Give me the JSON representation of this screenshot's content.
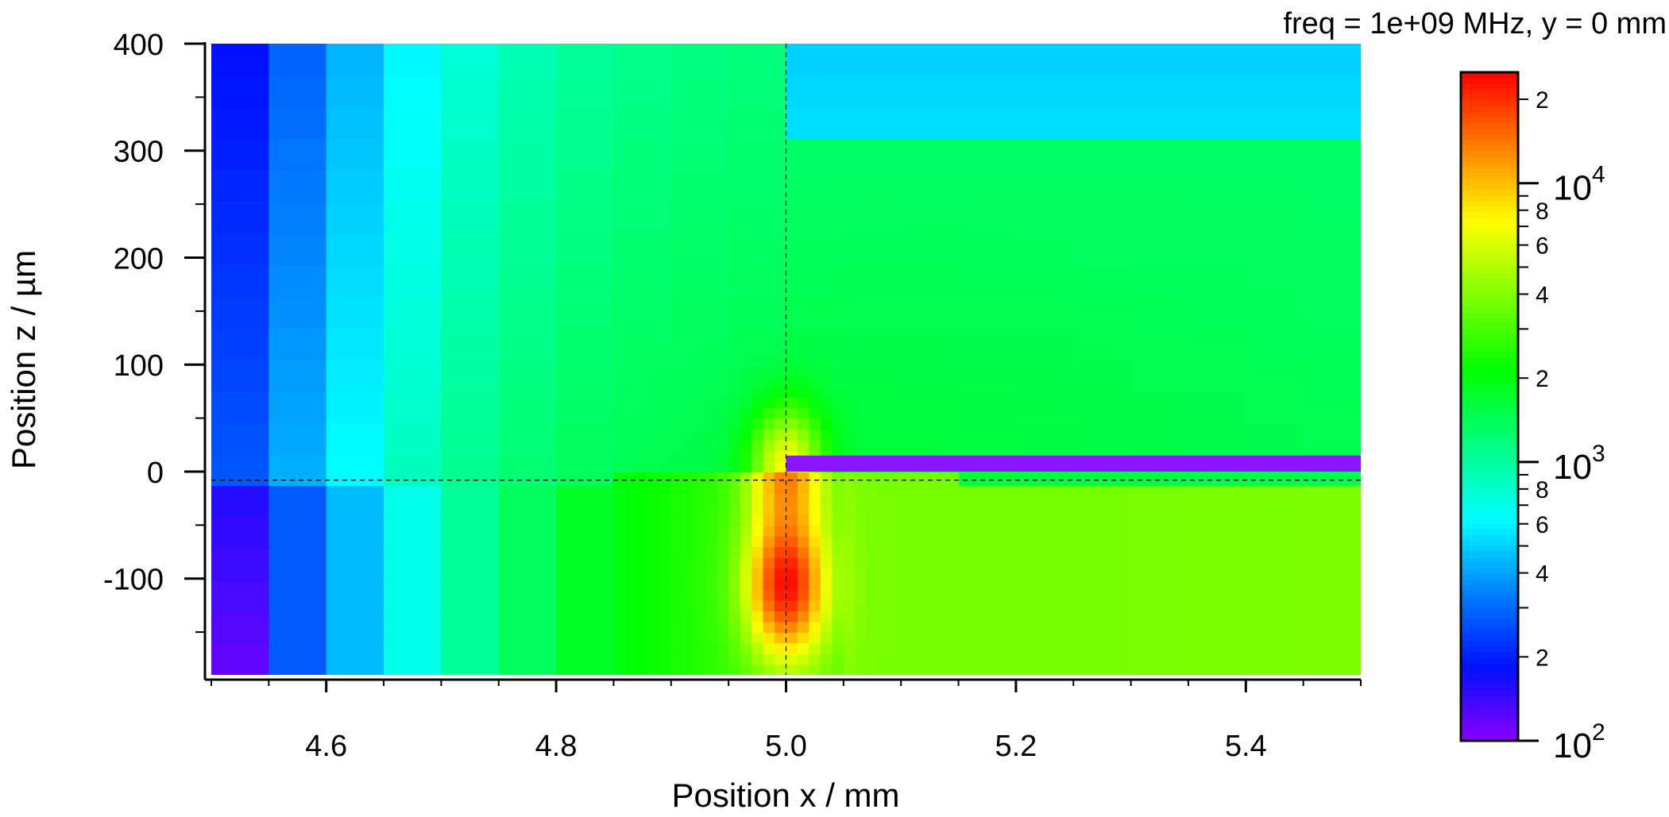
{
  "chart_data": {
    "type": "heatmap",
    "title": "freq = 1e+09 MHz, y = 0 mm",
    "xlabel": "Position x / mm",
    "ylabel": "Position z / µm",
    "xlim": [
      4.5,
      5.5
    ],
    "ylim": [
      -190,
      400
    ],
    "x_ticks": [
      4.6,
      4.8,
      5.0,
      5.2,
      5.4
    ],
    "x_tick_labels": [
      "4.6",
      "4.8",
      "5.0",
      "5.2",
      "5.4"
    ],
    "y_ticks": [
      -100,
      0,
      100,
      200,
      300,
      400
    ],
    "y_tick_labels": [
      "-100",
      "0",
      "100",
      "200",
      "300",
      "400"
    ],
    "crosshair": {
      "x": 5.0,
      "z": -8
    },
    "electrode": {
      "x_start": 5.0,
      "x_end": 5.5,
      "z_bottom": 0,
      "z_top": 15,
      "color": "#8a14ff"
    },
    "hotspot": {
      "x": 5.0,
      "z": -105
    },
    "colorscale": {
      "scale": "log",
      "range": [
        100,
        25000
      ],
      "colors": [
        "#8a00ff",
        "#0010ff",
        "#0080ff",
        "#00ffff",
        "#00ff80",
        "#00ff00",
        "#80ff00",
        "#ffff00",
        "#ff8000",
        "#ff0000"
      ],
      "major_ticks": [
        {
          "value": 100,
          "base": "10",
          "exp": "2"
        },
        {
          "value": 1000,
          "base": "10",
          "exp": "3"
        },
        {
          "value": 10000,
          "base": "10",
          "exp": "4"
        }
      ],
      "minor_labels": [
        {
          "value": 200,
          "label": "2"
        },
        {
          "value": 400,
          "label": "4"
        },
        {
          "value": 600,
          "label": "6"
        },
        {
          "value": 800,
          "label": "8"
        },
        {
          "value": 2000,
          "label": "2"
        },
        {
          "value": 4000,
          "label": "4"
        },
        {
          "value": 6000,
          "label": "6"
        },
        {
          "value": 8000,
          "label": "8"
        },
        {
          "value": 20000,
          "label": "2"
        }
      ]
    }
  }
}
